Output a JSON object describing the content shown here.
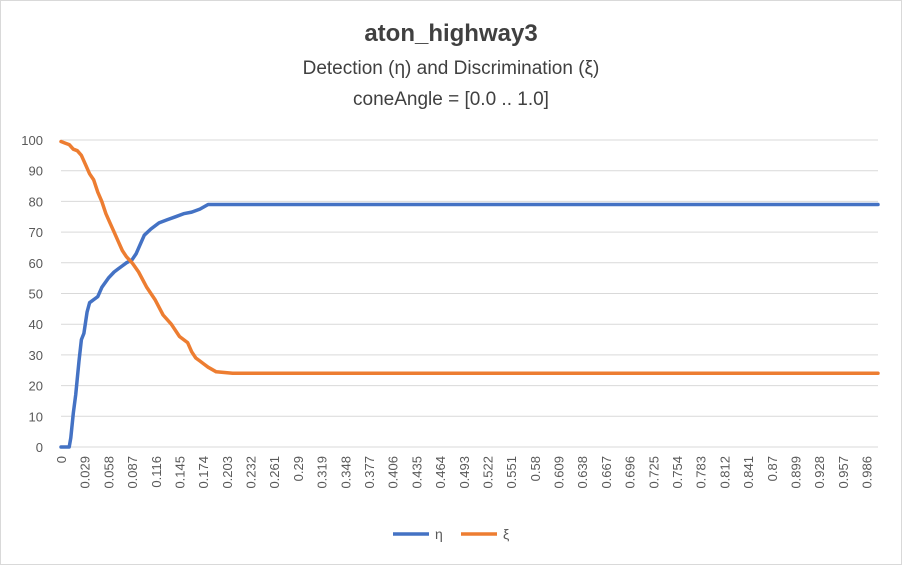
{
  "chart_data": {
    "type": "line",
    "title": "aton_highway3",
    "subtitle": [
      "Detection (η) and Discrimination (ξ)",
      "coneAngle = [0.0 .. 1.0]"
    ],
    "xlabel": "",
    "ylabel": "",
    "ylim": [
      0,
      100
    ],
    "yticks": [
      0,
      10,
      20,
      30,
      40,
      50,
      60,
      70,
      80,
      90,
      100
    ],
    "xlim": [
      0,
      1
    ],
    "xticks": [
      0,
      0.029,
      0.058,
      0.087,
      0.116,
      0.145,
      0.174,
      0.203,
      0.232,
      0.261,
      0.29,
      0.319,
      0.348,
      0.377,
      0.406,
      0.435,
      0.464,
      0.493,
      0.522,
      0.551,
      0.58,
      0.609,
      0.638,
      0.667,
      0.696,
      0.725,
      0.754,
      0.783,
      0.812,
      0.841,
      0.87,
      0.899,
      0.928,
      0.957,
      0.986
    ],
    "grid": true,
    "legend": "bottom",
    "series": [
      {
        "name": "η",
        "color": "#4472c4",
        "x": [
          0,
          0.01,
          0.012,
          0.015,
          0.018,
          0.022,
          0.025,
          0.028,
          0.032,
          0.035,
          0.04,
          0.045,
          0.05,
          0.058,
          0.065,
          0.07,
          0.075,
          0.08,
          0.087,
          0.092,
          0.097,
          0.102,
          0.11,
          0.12,
          0.13,
          0.14,
          0.15,
          0.16,
          0.17,
          0.18,
          1.0
        ],
        "y": [
          0,
          0,
          3,
          11,
          17,
          28,
          35,
          37,
          44,
          47,
          48,
          49,
          52,
          55,
          57,
          58,
          59,
          60,
          61,
          63,
          66,
          69,
          71,
          73,
          74,
          75,
          76,
          76.5,
          77.5,
          79,
          79
        ]
      },
      {
        "name": "ξ",
        "color": "#ed7d31",
        "x": [
          0,
          0.005,
          0.01,
          0.015,
          0.02,
          0.025,
          0.03,
          0.035,
          0.04,
          0.045,
          0.05,
          0.055,
          0.06,
          0.065,
          0.07,
          0.075,
          0.08,
          0.087,
          0.095,
          0.105,
          0.115,
          0.125,
          0.135,
          0.145,
          0.155,
          0.16,
          0.165,
          0.17,
          0.175,
          0.18,
          0.19,
          0.21,
          1.0
        ],
        "y": [
          99.5,
          99,
          98.5,
          97,
          96.5,
          95,
          92,
          89,
          87,
          83,
          80,
          76,
          73,
          70,
          67,
          64,
          62,
          60,
          57,
          52,
          48,
          43,
          40,
          36,
          34,
          31,
          29,
          28,
          27,
          26,
          24.5,
          24,
          24
        ]
      }
    ]
  }
}
